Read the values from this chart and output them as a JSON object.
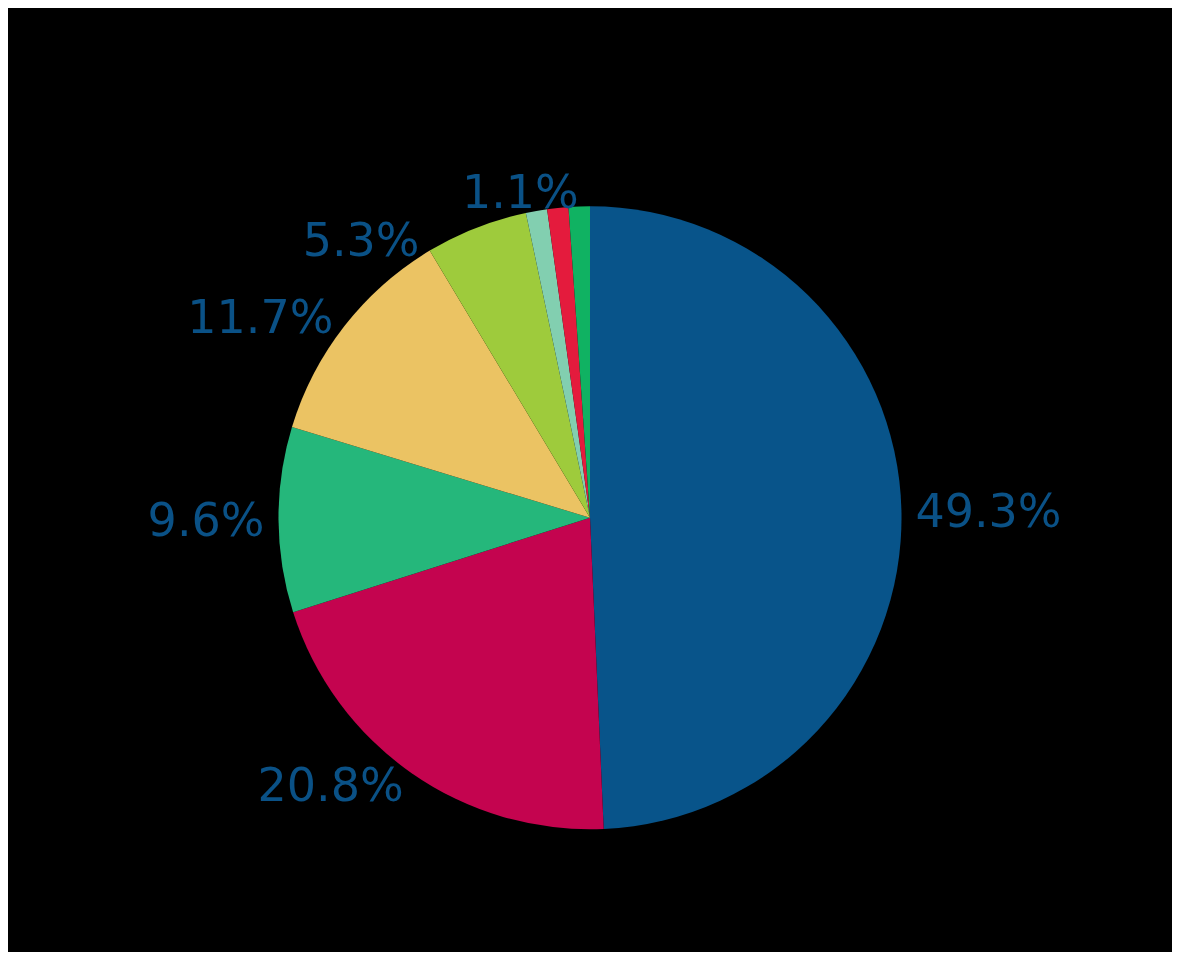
{
  "chart_data": {
    "type": "pie",
    "categories": [
      null,
      null,
      null,
      null,
      null,
      null,
      null,
      null
    ],
    "values": [
      49.3,
      20.8,
      9.6,
      11.7,
      5.3,
      1.1,
      1.1,
      1.1
    ],
    "value_labels": [
      "49.3%",
      "20.8%",
      "9.6%",
      "11.7%",
      "5.3%",
      null,
      null,
      "1.1%"
    ],
    "colors": [
      "#08548a",
      "#c4044f",
      "#25b77b",
      "#ebc363",
      "#9ecb3c",
      "#82cfb0",
      "#e41b3d",
      "#10b262"
    ]
  }
}
